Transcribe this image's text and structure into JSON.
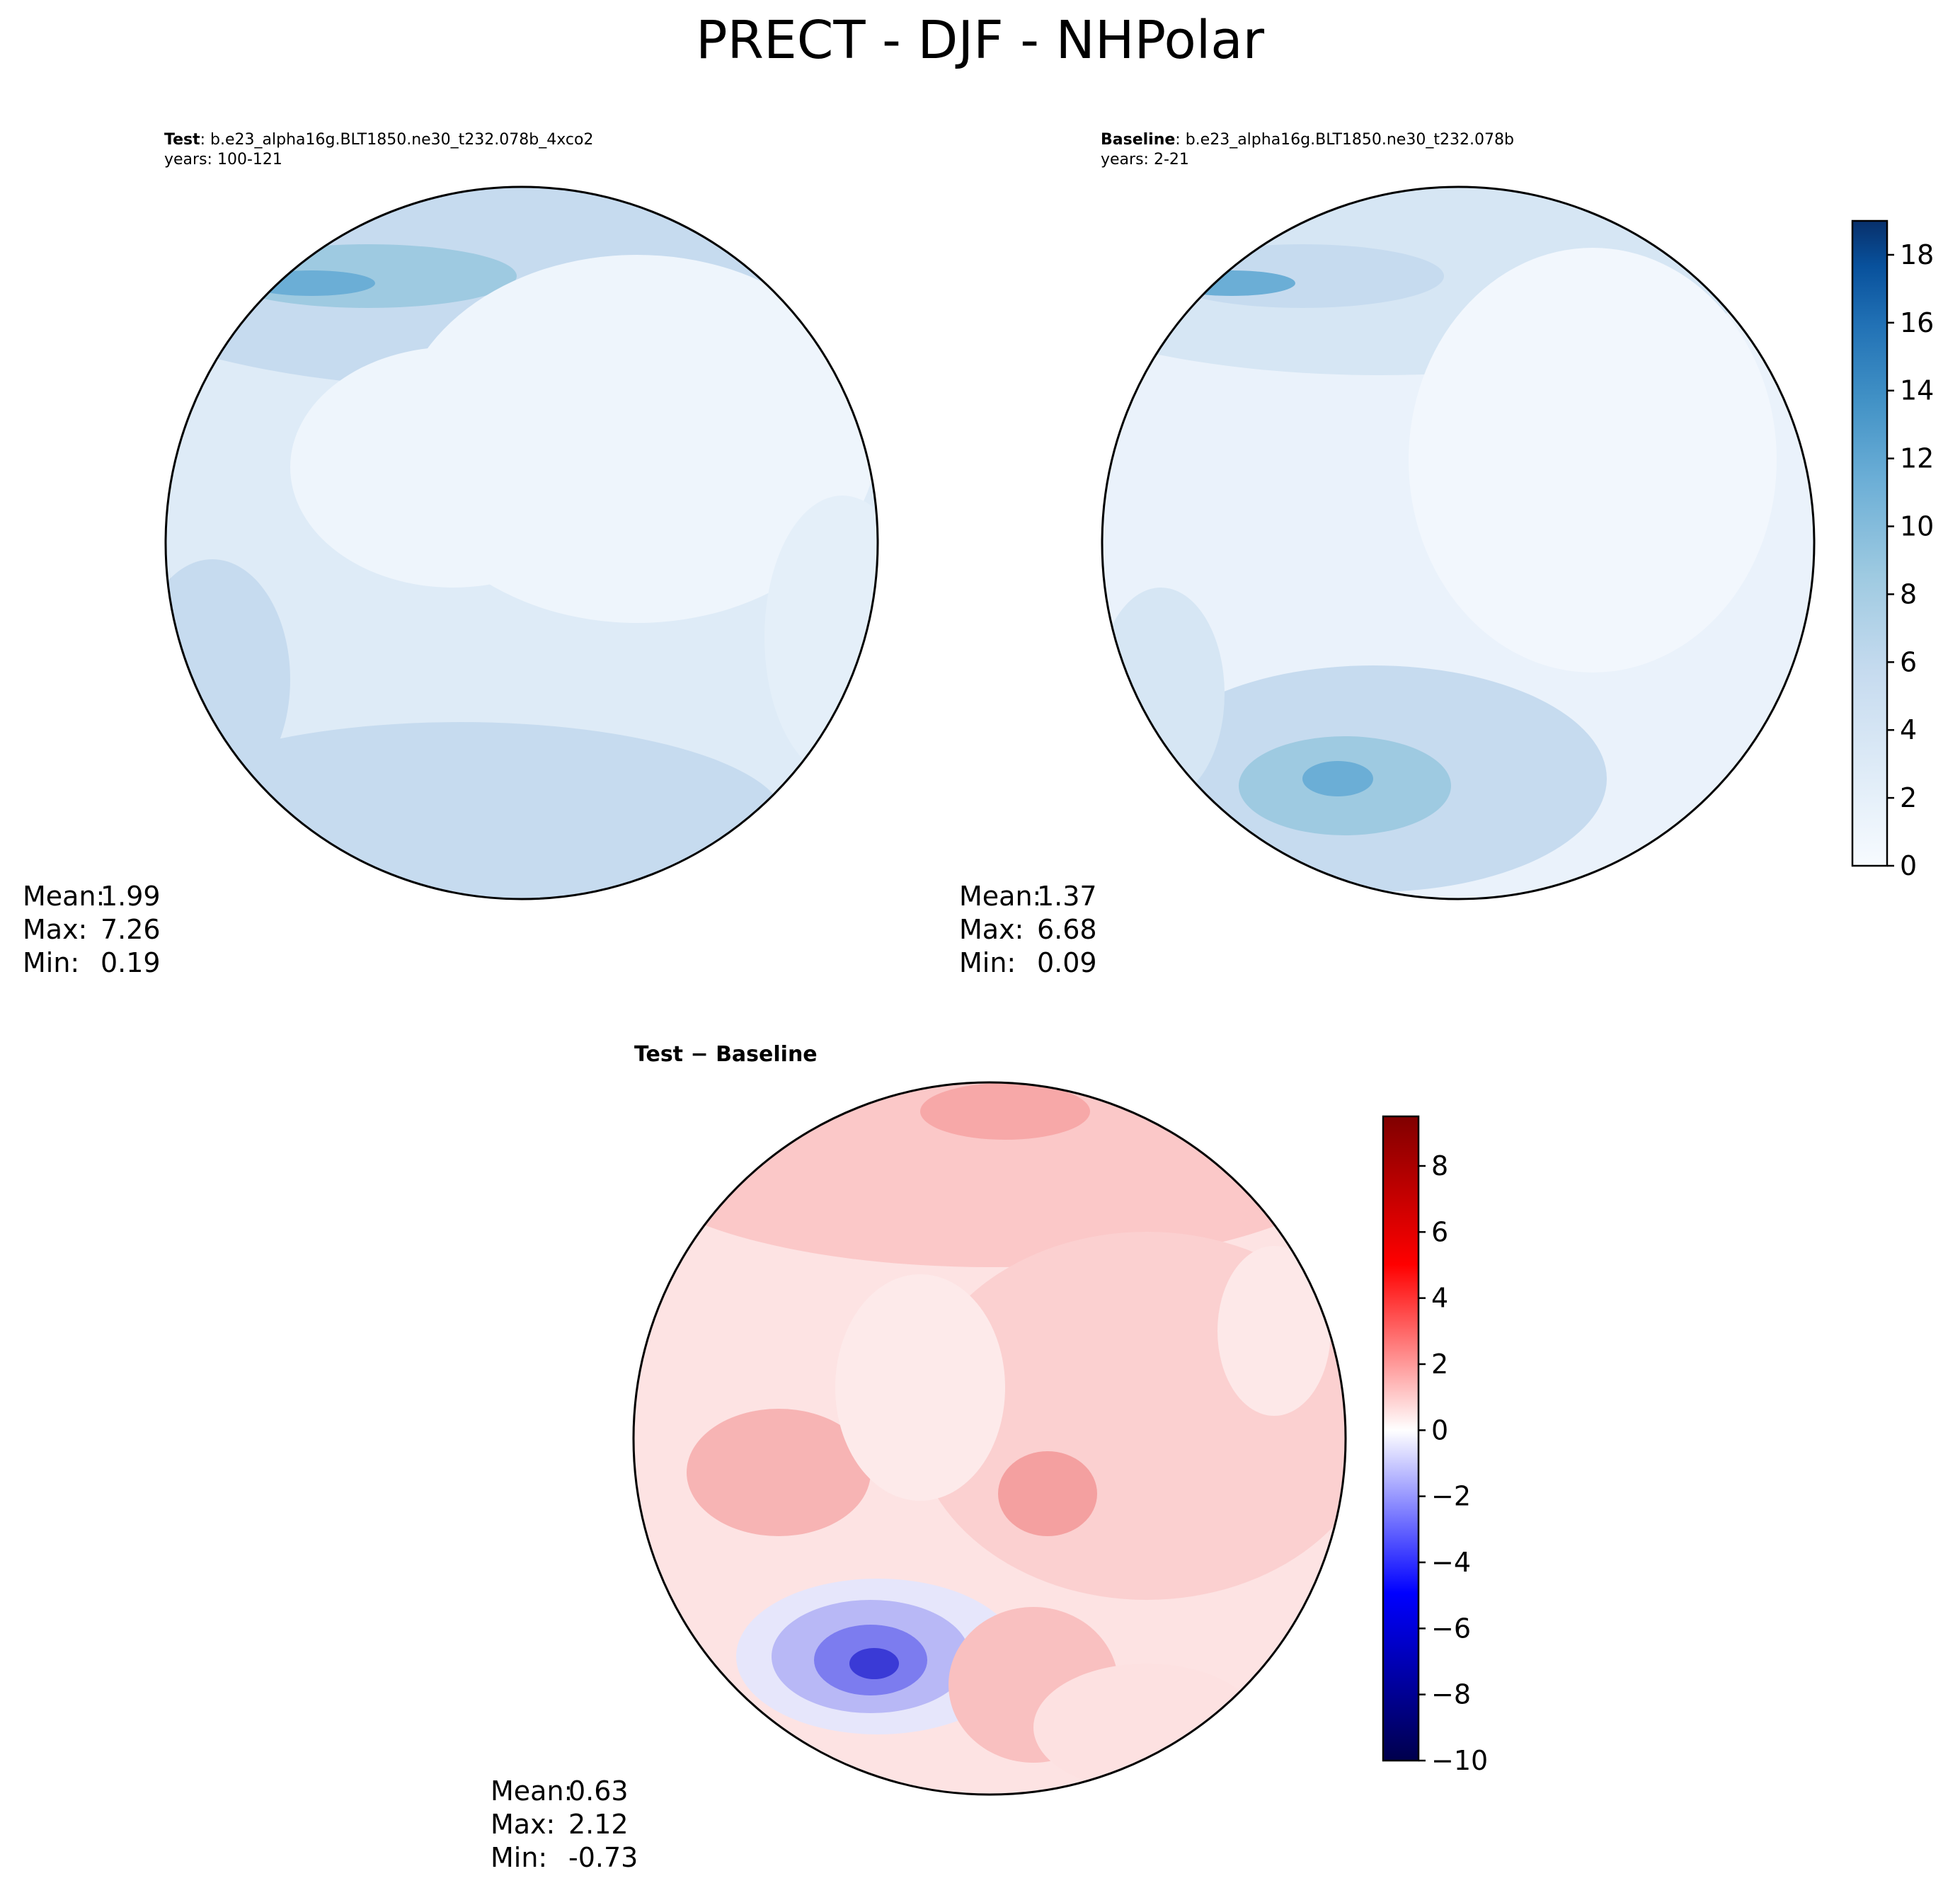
{
  "title": "PRECT - DJF - NHPolar",
  "panels": {
    "test": {
      "label": "Test",
      "case": ": b.e23_alpha16g.BLT1850.ne30_t232.078b_4xco2",
      "years": "years: 100-121",
      "stats": {
        "mean_label": "Mean:",
        "mean": "1.99",
        "max_label": "Max:",
        "max": "7.26",
        "min_label": "Min:",
        "min": "0.19"
      }
    },
    "baseline": {
      "label": "Baseline",
      "case": ": b.e23_alpha16g.BLT1850.ne30_t232.078b",
      "years": "years: 2-21",
      "stats": {
        "mean_label": "Mean:",
        "mean": "1.37",
        "max_label": "Max:",
        "max": "6.68",
        "min_label": "Min:",
        "min": "0.09"
      }
    },
    "diff": {
      "title_a": "Test",
      "title_sep": " − ",
      "title_b": "Baseline",
      "stats": {
        "mean_label": "Mean:",
        "mean": "0.63",
        "max_label": "Max:",
        "max": "2.12",
        "min_label": "Min:",
        "min": "-0.73"
      }
    }
  },
  "colors": {
    "blues": [
      "#f7fbff",
      "#deebf7",
      "#c6dbef",
      "#9ecae1",
      "#6baed6",
      "#4292c6",
      "#2171b5",
      "#08519c",
      "#08306b"
    ],
    "diverging": [
      "#00004c",
      "#0000ff",
      "#ffffff",
      "#ff0000",
      "#800000"
    ],
    "coast": "#000000"
  },
  "chart_data": [
    {
      "type": "heatmap",
      "name": "Test",
      "projection": "north-polar-stereographic",
      "variable": "PRECT",
      "season": "DJF",
      "stats": {
        "mean": 1.99,
        "max": 7.26,
        "min": 0.19
      }
    },
    {
      "type": "heatmap",
      "name": "Baseline",
      "projection": "north-polar-stereographic",
      "variable": "PRECT",
      "season": "DJF",
      "stats": {
        "mean": 1.37,
        "max": 6.68,
        "min": 0.09
      },
      "colorbar": {
        "range": [
          0,
          19
        ],
        "ticks": [
          0,
          2,
          4,
          6,
          8,
          10,
          12,
          14,
          16,
          18
        ],
        "tick_labels": [
          "0",
          "2",
          "4",
          "6",
          "8",
          "10",
          "12",
          "14",
          "16",
          "18"
        ],
        "levels": 19
      }
    },
    {
      "type": "heatmap",
      "name": "Test − Baseline",
      "projection": "north-polar-stereographic",
      "variable": "PRECT difference",
      "season": "DJF",
      "stats": {
        "mean": 0.63,
        "max": 2.12,
        "min": -0.73
      },
      "colorbar": {
        "range": [
          -10,
          9.5
        ],
        "ticks": [
          -10,
          -8,
          -6,
          -4,
          -2,
          0,
          2,
          4,
          6,
          8
        ],
        "tick_labels": [
          "−10",
          "−8",
          "−6",
          "−4",
          "−2",
          "0",
          "2",
          "4",
          "6",
          "8"
        ],
        "levels": 39
      }
    }
  ]
}
